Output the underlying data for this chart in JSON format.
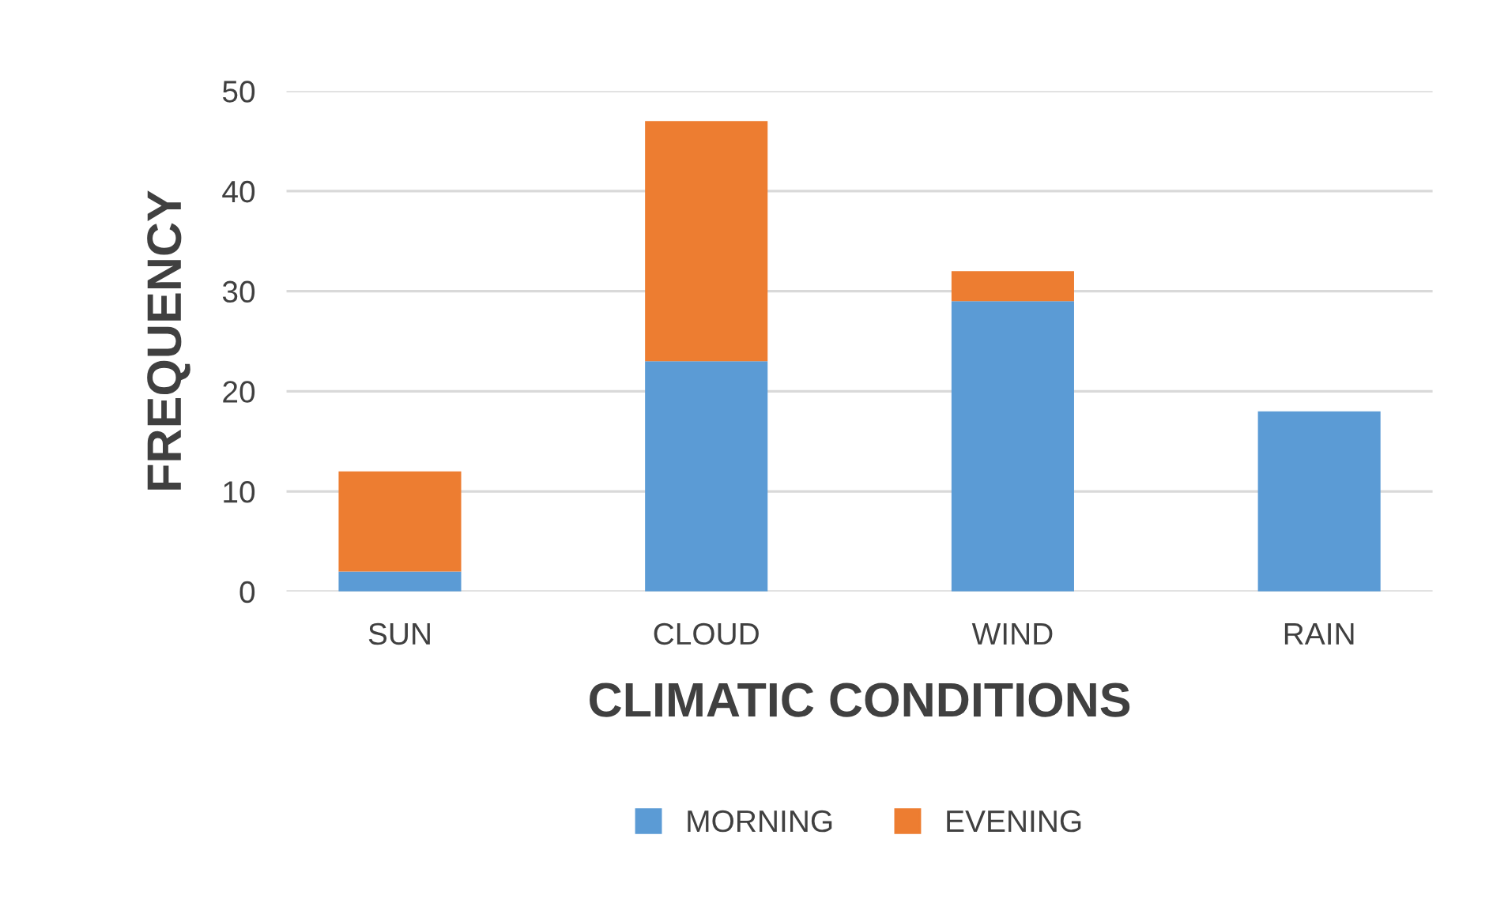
{
  "chart_data": {
    "type": "bar",
    "stacked": true,
    "xlabel": "CLIMATIC CONDITIONS",
    "ylabel": "FREQUENCY",
    "categories": [
      "SUN",
      "CLOUD",
      "WIND",
      "RAIN"
    ],
    "series": [
      {
        "name": "MORNING",
        "color": "#5b9bd5",
        "values": [
          2,
          23,
          29,
          18
        ]
      },
      {
        "name": "EVENING",
        "color": "#ed7d31",
        "values": [
          10,
          24,
          3,
          0
        ]
      }
    ],
    "ylim": [
      0,
      50
    ],
    "yticks": [
      0,
      10,
      20,
      30,
      40,
      50
    ],
    "grid": "y",
    "legend": "bottom"
  }
}
